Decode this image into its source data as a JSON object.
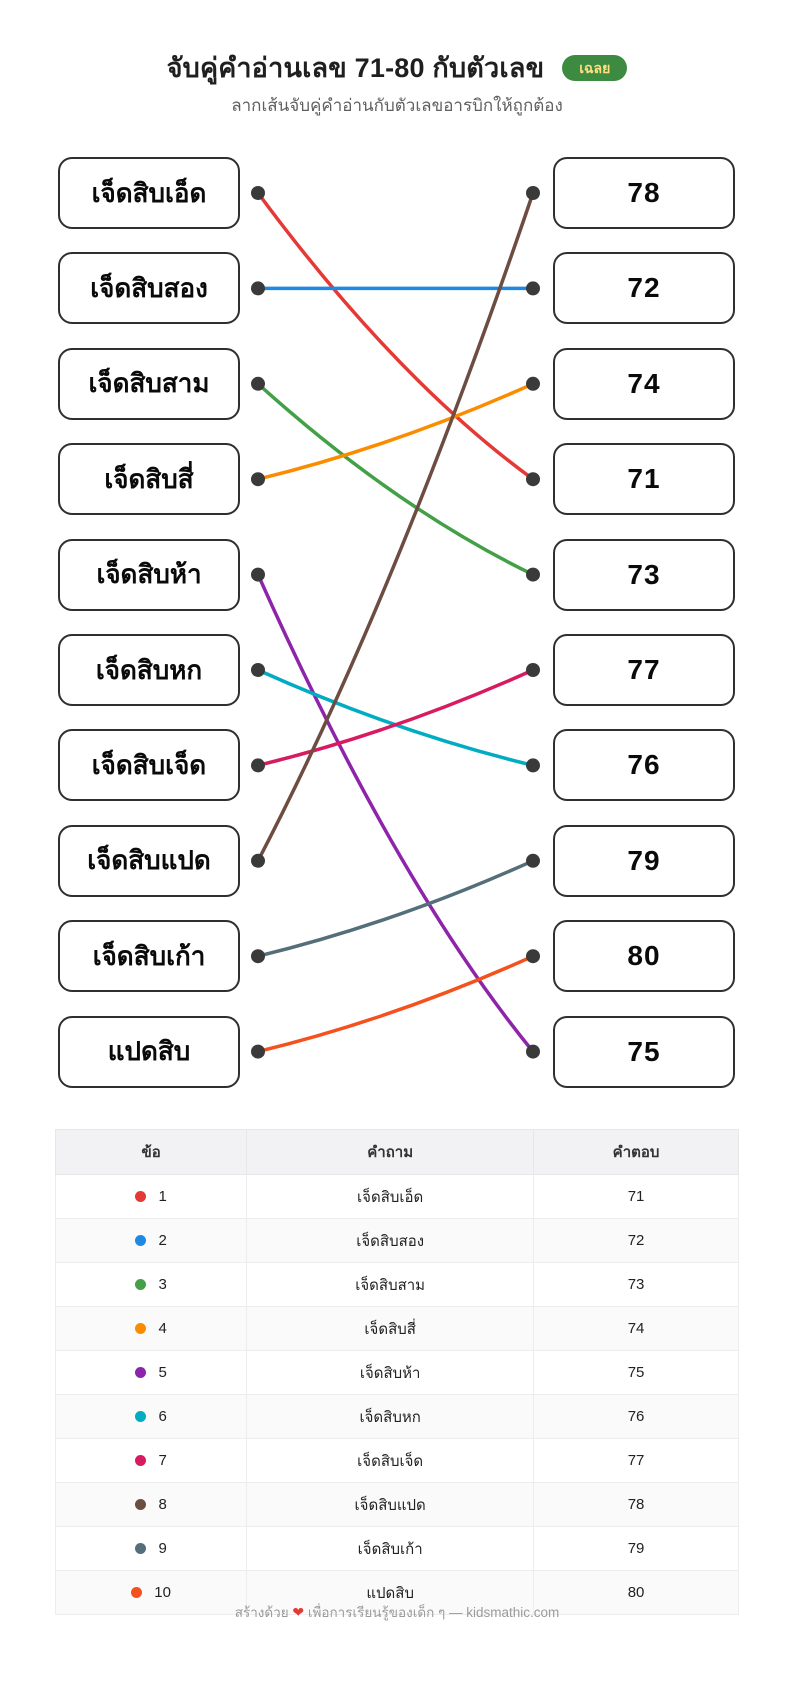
{
  "header": {
    "title": "จับคู่คำอ่านเลข 71-80 กับตัวเลข",
    "badge_label": "เฉลย",
    "subtitle": "ลากเส้นจับคู่คำอ่านกับตัวเลขอารบิกให้ถูกต้อง"
  },
  "colors": {
    "badge_bg": "#3d8b40",
    "badge_text": "#ffe082",
    "endpoint_dot": "#3a3a3a",
    "box_border": "#2f2f2f"
  },
  "match": {
    "left_items": [
      "เจ็ดสิบเอ็ด",
      "เจ็ดสิบสอง",
      "เจ็ดสิบสาม",
      "เจ็ดสิบสี่",
      "เจ็ดสิบห้า",
      "เจ็ดสิบหก",
      "เจ็ดสิบเจ็ด",
      "เจ็ดสิบแปด",
      "เจ็ดสิบเก้า",
      "แปดสิบ"
    ],
    "right_items": [
      "78",
      "72",
      "74",
      "71",
      "73",
      "77",
      "76",
      "79",
      "80",
      "75"
    ],
    "connections": [
      {
        "from": 0,
        "to": 3,
        "color": "#e53935"
      },
      {
        "from": 1,
        "to": 1,
        "color": "#1e88e5"
      },
      {
        "from": 2,
        "to": 4,
        "color": "#43a047"
      },
      {
        "from": 3,
        "to": 2,
        "color": "#fb8c00"
      },
      {
        "from": 4,
        "to": 9,
        "color": "#8e24aa"
      },
      {
        "from": 5,
        "to": 6,
        "color": "#00acc1"
      },
      {
        "from": 6,
        "to": 5,
        "color": "#d81b60"
      },
      {
        "from": 7,
        "to": 0,
        "color": "#6d4c41"
      },
      {
        "from": 8,
        "to": 7,
        "color": "#546e7a"
      },
      {
        "from": 9,
        "to": 8,
        "color": "#f4511e"
      }
    ]
  },
  "table": {
    "headers": [
      "ข้อ",
      "คำถาม",
      "คำตอบ"
    ],
    "rows": [
      {
        "num": "1",
        "dot_color": "#e53935",
        "question": "เจ็ดสิบเอ็ด",
        "answer": "71"
      },
      {
        "num": "2",
        "dot_color": "#1e88e5",
        "question": "เจ็ดสิบสอง",
        "answer": "72"
      },
      {
        "num": "3",
        "dot_color": "#43a047",
        "question": "เจ็ดสิบสาม",
        "answer": "73"
      },
      {
        "num": "4",
        "dot_color": "#fb8c00",
        "question": "เจ็ดสิบสี่",
        "answer": "74"
      },
      {
        "num": "5",
        "dot_color": "#8e24aa",
        "question": "เจ็ดสิบห้า",
        "answer": "75"
      },
      {
        "num": "6",
        "dot_color": "#00acc1",
        "question": "เจ็ดสิบหก",
        "answer": "76"
      },
      {
        "num": "7",
        "dot_color": "#d81b60",
        "question": "เจ็ดสิบเจ็ด",
        "answer": "77"
      },
      {
        "num": "8",
        "dot_color": "#6d4c41",
        "question": "เจ็ดสิบแปด",
        "answer": "78"
      },
      {
        "num": "9",
        "dot_color": "#546e7a",
        "question": "เจ็ดสิบเก้า",
        "answer": "79"
      },
      {
        "num": "10",
        "dot_color": "#f4511e",
        "question": "แปดสิบ",
        "answer": "80"
      }
    ]
  },
  "footer": {
    "text_before": "สร้างด้วย",
    "heart": "❤",
    "text_after": "เพื่อการเรียนรู้ของเด็ก ๆ — kidsmathic.com"
  }
}
